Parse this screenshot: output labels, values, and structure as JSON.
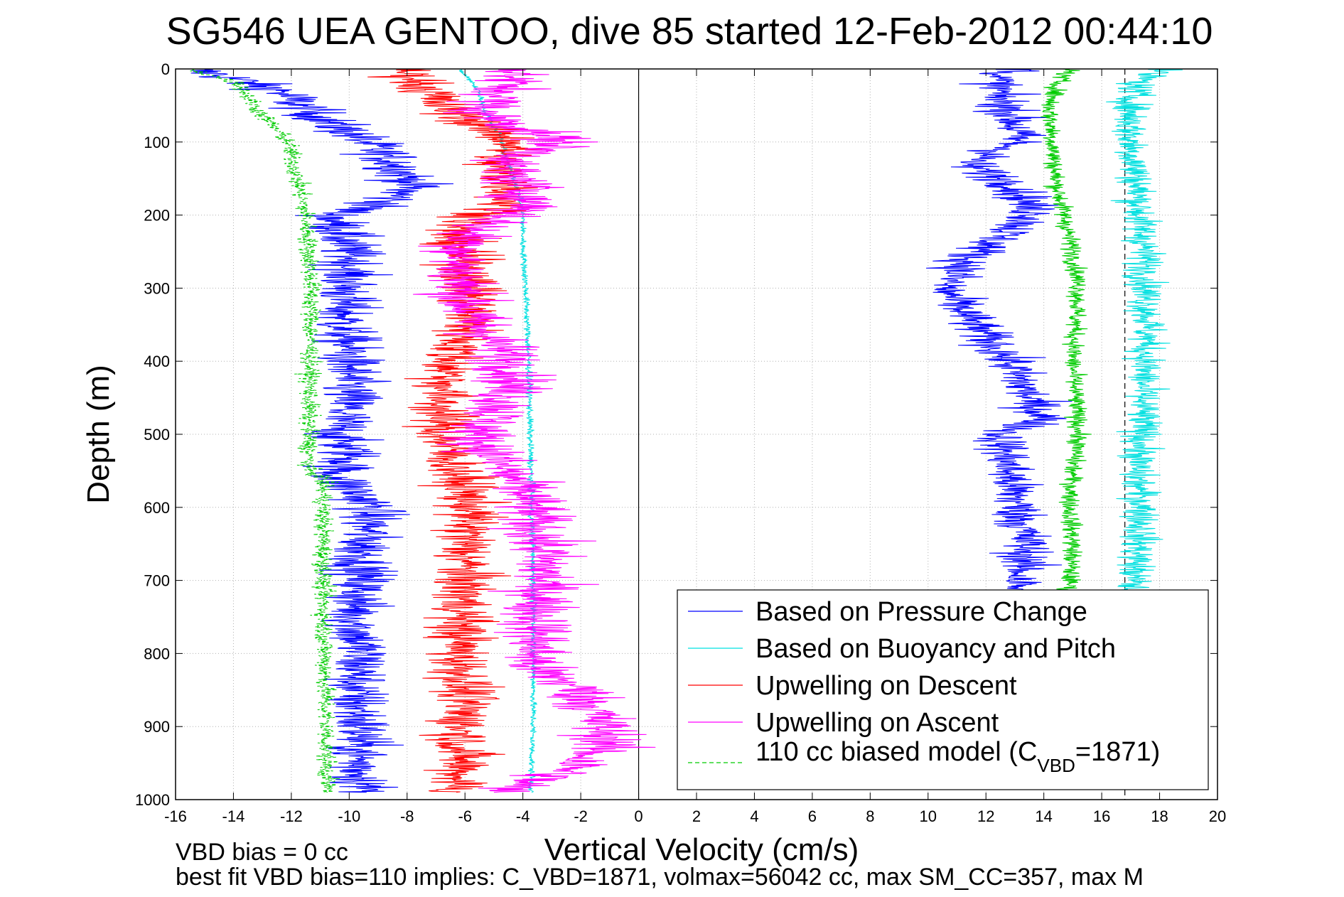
{
  "chart_data": {
    "type": "line",
    "title": "SG546 UEA GENTOO, dive 85 started 12-Feb-2012 00:44:10",
    "xlabel": "Vertical Velocity (cm/s)",
    "ylabel": "Depth (m)",
    "xlim": [
      -16,
      20
    ],
    "ylim": [
      0,
      1000
    ],
    "y_reversed": true,
    "x_ticks": [
      -16,
      -14,
      -12,
      -10,
      -8,
      -6,
      -4,
      -2,
      0,
      2,
      4,
      6,
      8,
      10,
      12,
      14,
      16,
      18,
      20
    ],
    "y_ticks": [
      0,
      100,
      200,
      300,
      400,
      500,
      600,
      700,
      800,
      900,
      1000
    ],
    "x_tick_labels": [
      "-16",
      "-14",
      "-12",
      "-10",
      "-8",
      "-6",
      "-4",
      "-2",
      "0",
      "2",
      "4",
      "6",
      "8",
      "10",
      "12",
      "14",
      "16",
      "18",
      "20"
    ],
    "y_tick_labels": [
      "0",
      "100",
      "200",
      "300",
      "400",
      "500",
      "600",
      "700",
      "800",
      "900",
      "1000"
    ],
    "grid": true,
    "reference_lines": [
      {
        "x": 0,
        "style": "solid",
        "color": "#000000"
      },
      {
        "x": 16.8,
        "style": "dashed",
        "color": "#000000"
      }
    ],
    "legend_position": "bottom-right",
    "series": [
      {
        "name": "Based on Pressure Change",
        "color": "#0000ff",
        "style": "solid",
        "noise": 0.6,
        "depth": [
          0,
          10,
          30,
          60,
          100,
          130,
          160,
          185,
          200,
          230,
          260,
          300,
          350,
          400,
          450,
          500,
          530,
          555,
          600,
          650,
          700,
          750,
          800,
          850,
          900,
          950,
          990
        ],
        "velocity": [
          -15.5,
          -14.3,
          -12.4,
          -11.3,
          -9.4,
          -8.4,
          -7.8,
          -8.9,
          -10.6,
          -10.2,
          -9.9,
          -10.1,
          -10.2,
          -10.0,
          -10.0,
          -10.4,
          -9.9,
          -10.5,
          -9.2,
          -9.5,
          -9.6,
          -9.8,
          -9.6,
          -9.8,
          -9.6,
          -9.7,
          -9.4
        ]
      },
      {
        "name": "Based on Pressure Change",
        "color": "#0000ff",
        "style": "solid",
        "noise": 0.5,
        "depth": [
          0,
          10,
          40,
          70,
          100,
          130,
          160,
          200,
          230,
          260,
          300,
          350,
          400,
          450,
          480,
          500,
          550,
          600,
          650,
          700,
          720
        ],
        "velocity": [
          13.5,
          12.3,
          12.5,
          13.0,
          13.1,
          11.4,
          13.0,
          13.7,
          12.5,
          11.4,
          10.6,
          11.6,
          12.8,
          13.5,
          14.0,
          12.5,
          12.8,
          13.1,
          13.4,
          13.2,
          13.0
        ]
      },
      {
        "name": "Based on Buoyancy and Pitch",
        "color": "#00e0e0",
        "style": "solid",
        "noise": 0.06,
        "depth": [
          0,
          30,
          60,
          90,
          120,
          160,
          200,
          240,
          300,
          400,
          500,
          600,
          700,
          800,
          900,
          950,
          990
        ],
        "velocity": [
          -6.2,
          -5.5,
          -5.3,
          -4.8,
          -4.6,
          -4.2,
          -4.0,
          -4.0,
          -3.9,
          -3.8,
          -3.75,
          -3.7,
          -3.65,
          -3.62,
          -3.65,
          -3.7,
          -3.7
        ]
      },
      {
        "name": "Based on Buoyancy and Pitch",
        "color": "#00e0e0",
        "style": "solid",
        "noise": 0.35,
        "depth": [
          0,
          20,
          50,
          100,
          150,
          200,
          250,
          300,
          350,
          400,
          450,
          500,
          550,
          600,
          650,
          700,
          720
        ],
        "velocity": [
          18.0,
          17.2,
          17.0,
          17.0,
          17.2,
          17.3,
          17.5,
          17.5,
          17.6,
          17.5,
          17.4,
          17.4,
          17.2,
          17.4,
          17.3,
          17.1,
          17.0
        ]
      },
      {
        "name": "Upwelling on Descent",
        "color": "#ff0000",
        "style": "solid",
        "noise": 0.6,
        "depth": [
          0,
          20,
          50,
          100,
          130,
          160,
          190,
          220,
          250,
          300,
          350,
          400,
          450,
          500,
          550,
          600,
          650,
          700,
          750,
          800,
          850,
          900,
          950,
          990
        ],
        "velocity": [
          -8.2,
          -7.5,
          -6.8,
          -4.3,
          -5.0,
          -4.4,
          -4.6,
          -6.5,
          -6.1,
          -5.8,
          -5.8,
          -6.5,
          -6.8,
          -6.8,
          -6.3,
          -5.8,
          -6.0,
          -6.0,
          -6.1,
          -6.2,
          -6.0,
          -6.1,
          -6.1,
          -6.3
        ]
      },
      {
        "name": "Upwelling on Ascent",
        "color": "#ff00ff",
        "style": "solid",
        "noise": 0.7,
        "depth": [
          0,
          30,
          60,
          100,
          130,
          160,
          190,
          220,
          260,
          300,
          340,
          380,
          420,
          460,
          500,
          540,
          580,
          620,
          660,
          700,
          760,
          820,
          850,
          880,
          920,
          960,
          990
        ],
        "velocity": [
          -4.3,
          -4.6,
          -5.5,
          -2.6,
          -4.7,
          -4.0,
          -3.7,
          -5.7,
          -6.2,
          -6.1,
          -5.8,
          -4.8,
          -4.2,
          -4.7,
          -5.6,
          -4.8,
          -3.9,
          -3.6,
          -3.3,
          -3.3,
          -3.5,
          -3.6,
          -2.0,
          -1.5,
          -1.0,
          -2.4,
          -5.0
        ]
      },
      {
        "name": "110 cc biased model (CVBD=1871)",
        "color": "#00cc00",
        "style": "dashed",
        "noise": 0.18,
        "depth": [
          0,
          20,
          50,
          80,
          100,
          150,
          200,
          300,
          400,
          500,
          550,
          560,
          600,
          700,
          800,
          900,
          990
        ],
        "velocity": [
          -15.5,
          -13.8,
          -13.3,
          -12.6,
          -12.1,
          -11.8,
          -11.5,
          -11.3,
          -11.35,
          -11.4,
          -11.4,
          -10.9,
          -10.9,
          -10.9,
          -10.85,
          -10.8,
          -10.75
        ]
      },
      {
        "name": "110 cc biased model (CVBD=1871)",
        "color": "#00cc00",
        "style": "solid",
        "noise": 0.18,
        "depth": [
          0,
          10,
          50,
          100,
          150,
          200,
          250,
          300,
          350,
          400,
          450,
          500,
          550,
          600,
          650,
          700,
          720
        ],
        "velocity": [
          15.0,
          14.6,
          14.2,
          14.3,
          14.4,
          14.7,
          15.0,
          15.2,
          15.1,
          15.0,
          15.1,
          15.2,
          15.0,
          14.9,
          15.0,
          14.9,
          14.9
        ]
      }
    ],
    "legend": [
      {
        "label": "Based on Pressure Change",
        "color": "#0000ff",
        "style": "solid"
      },
      {
        "label": "Based on Buoyancy and Pitch",
        "color": "#00e0e0",
        "style": "solid"
      },
      {
        "label": "Upwelling on Descent",
        "color": "#ff0000",
        "style": "solid"
      },
      {
        "label": "Upwelling on Ascent",
        "color": "#ff00ff",
        "style": "solid"
      },
      {
        "label": "110 cc biased model (C",
        "sub": "VBD",
        "suffix": "=1871)",
        "color": "#00cc00",
        "style": "dashed"
      }
    ]
  },
  "annotations": {
    "vbd_bias": "VBD bias = 0 cc",
    "best_fit": "best fit VBD bias=110 implies: C_VBD=1871, volmax=56042 cc, max SM_CC=357, max M"
  },
  "colors": {
    "pressure": "#0000ff",
    "buoyancy": "#00e0e0",
    "descent": "#ff0000",
    "ascent": "#ff00ff",
    "model": "#00cc00",
    "grid": "#b0b0b0",
    "axis": "#000000",
    "background": "#ffffff"
  }
}
